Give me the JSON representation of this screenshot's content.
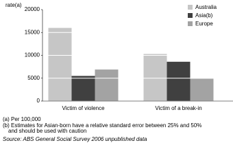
{
  "chart_data": {
    "type": "bar",
    "y_label": "rate(a)",
    "categories": [
      "Victim of violence",
      "Victim of a break-in"
    ],
    "series": [
      {
        "name": "Australia",
        "color": "#c6c6c6",
        "values": [
          16000,
          10300
        ]
      },
      {
        "name": "Asia(b)",
        "color": "#404040",
        "values": [
          5500,
          8600
        ]
      },
      {
        "name": "Europe",
        "color": "#a3a3a3",
        "values": [
          6900,
          4900
        ]
      }
    ],
    "ylim": [
      0,
      20000
    ],
    "yticks": [
      0,
      5000,
      10000,
      15000,
      20000
    ],
    "grid": true,
    "legend": "top-right",
    "notes": [
      "(a) Per 100,000",
      "(b) Estimates for Asian-born have a relative standard error between 25% and 50%",
      "and should be used with caution"
    ],
    "source": "Source: ABS General Social Survey 2006 unpublished data"
  }
}
